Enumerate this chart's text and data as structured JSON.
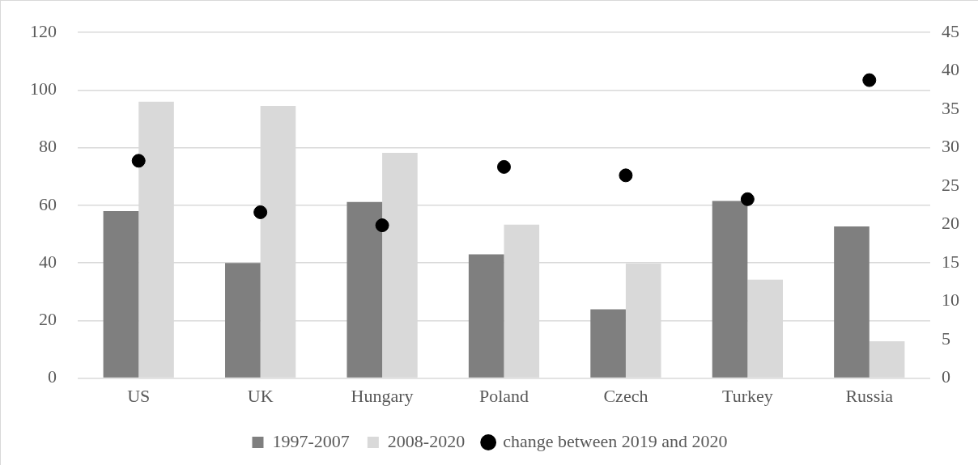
{
  "chart_data": {
    "type": "bar",
    "categories": [
      "US",
      "UK",
      "Hungary",
      "Poland",
      "Czech",
      "Turkey",
      "Russia"
    ],
    "series": [
      {
        "name": "1997-2007",
        "color": "#7f7f7f",
        "values": [
          58.0,
          40.0,
          61.2,
          43.0,
          23.9,
          61.5,
          52.7
        ]
      },
      {
        "name": "2008-2020",
        "color": "#d9d9d9",
        "values": [
          96.0,
          94.5,
          78.2,
          53.3,
          39.8,
          34.2,
          12.8
        ]
      },
      {
        "name": "change between 2019 and 2020",
        "type": "scatter",
        "axis": "y2",
        "color": "#000000",
        "marker": "circle",
        "values": [
          28.3,
          21.6,
          19.9,
          27.5,
          26.4,
          23.3,
          38.8
        ]
      }
    ],
    "ylim": [
      0,
      120
    ],
    "yticks": [
      0,
      20,
      40,
      60,
      80,
      100,
      120
    ],
    "y2lim": [
      0,
      45
    ],
    "y2ticks": [
      0,
      5,
      10,
      15,
      20,
      25,
      30,
      35,
      40,
      45
    ],
    "grid": "y",
    "legend": "bottom"
  }
}
